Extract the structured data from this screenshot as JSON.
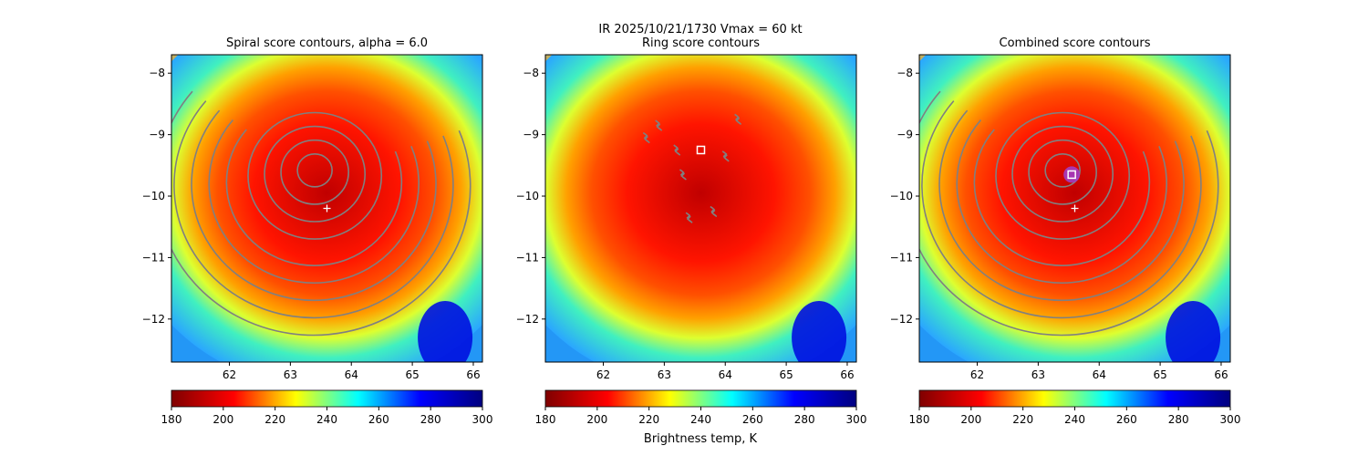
{
  "suptitle": "IR  2025/10/21/1730    Vmax = 60 kt",
  "colorbar_label": "Brightness temp, K",
  "colormap": [
    "#7f0000",
    "#ff0000",
    "#ffff00",
    "#00ffff",
    "#0000ff",
    "#00007f"
  ],
  "contour_color": "#808080",
  "chart_data": [
    {
      "type": "heatmap",
      "title": "Spiral score contours, alpha =  6.0",
      "xlim": [
        61.05,
        66.15
      ],
      "ylim": [
        -12.7,
        -7.7
      ],
      "xticks": [
        62,
        63,
        64,
        65,
        66
      ],
      "yticks": [
        -8,
        -9,
        -10,
        -11,
        -12
      ],
      "colorbar": {
        "range": [
          180,
          300
        ],
        "ticks": [
          180,
          200,
          220,
          240,
          260,
          280,
          300
        ]
      },
      "markers": [
        {
          "kind": "plus",
          "lon": 63.6,
          "lat": -10.2,
          "color": "#ffffff"
        }
      ],
      "contour_center": {
        "lon": 63.4,
        "lat": -9.7
      }
    },
    {
      "type": "heatmap",
      "title": "Ring score contours",
      "xlim": [
        61.05,
        66.15
      ],
      "ylim": [
        -12.7,
        -7.7
      ],
      "xticks": [
        62,
        63,
        64,
        65,
        66
      ],
      "yticks": [
        -8,
        -9,
        -10,
        -11,
        -12
      ],
      "colorbar": {
        "range": [
          180,
          300
        ],
        "ticks": [
          180,
          200,
          220,
          240,
          260,
          280,
          300
        ]
      },
      "markers": [
        {
          "kind": "square",
          "lon": 63.6,
          "lat": -9.25,
          "color": "#ffffff"
        }
      ]
    },
    {
      "type": "heatmap",
      "title": "Combined score contours",
      "xlim": [
        61.05,
        66.15
      ],
      "ylim": [
        -12.7,
        -7.7
      ],
      "xticks": [
        62,
        63,
        64,
        65,
        66
      ],
      "yticks": [
        -8,
        -9,
        -10,
        -11,
        -12
      ],
      "colorbar": {
        "range": [
          180,
          300
        ],
        "ticks": [
          180,
          200,
          220,
          240,
          260,
          280,
          300
        ]
      },
      "markers": [
        {
          "kind": "plus",
          "lon": 63.6,
          "lat": -10.2,
          "color": "#ffffff"
        },
        {
          "kind": "square",
          "lon": 63.55,
          "lat": -9.65,
          "color": "#ffffff"
        }
      ],
      "contour_center": {
        "lon": 63.4,
        "lat": -9.7
      }
    }
  ]
}
